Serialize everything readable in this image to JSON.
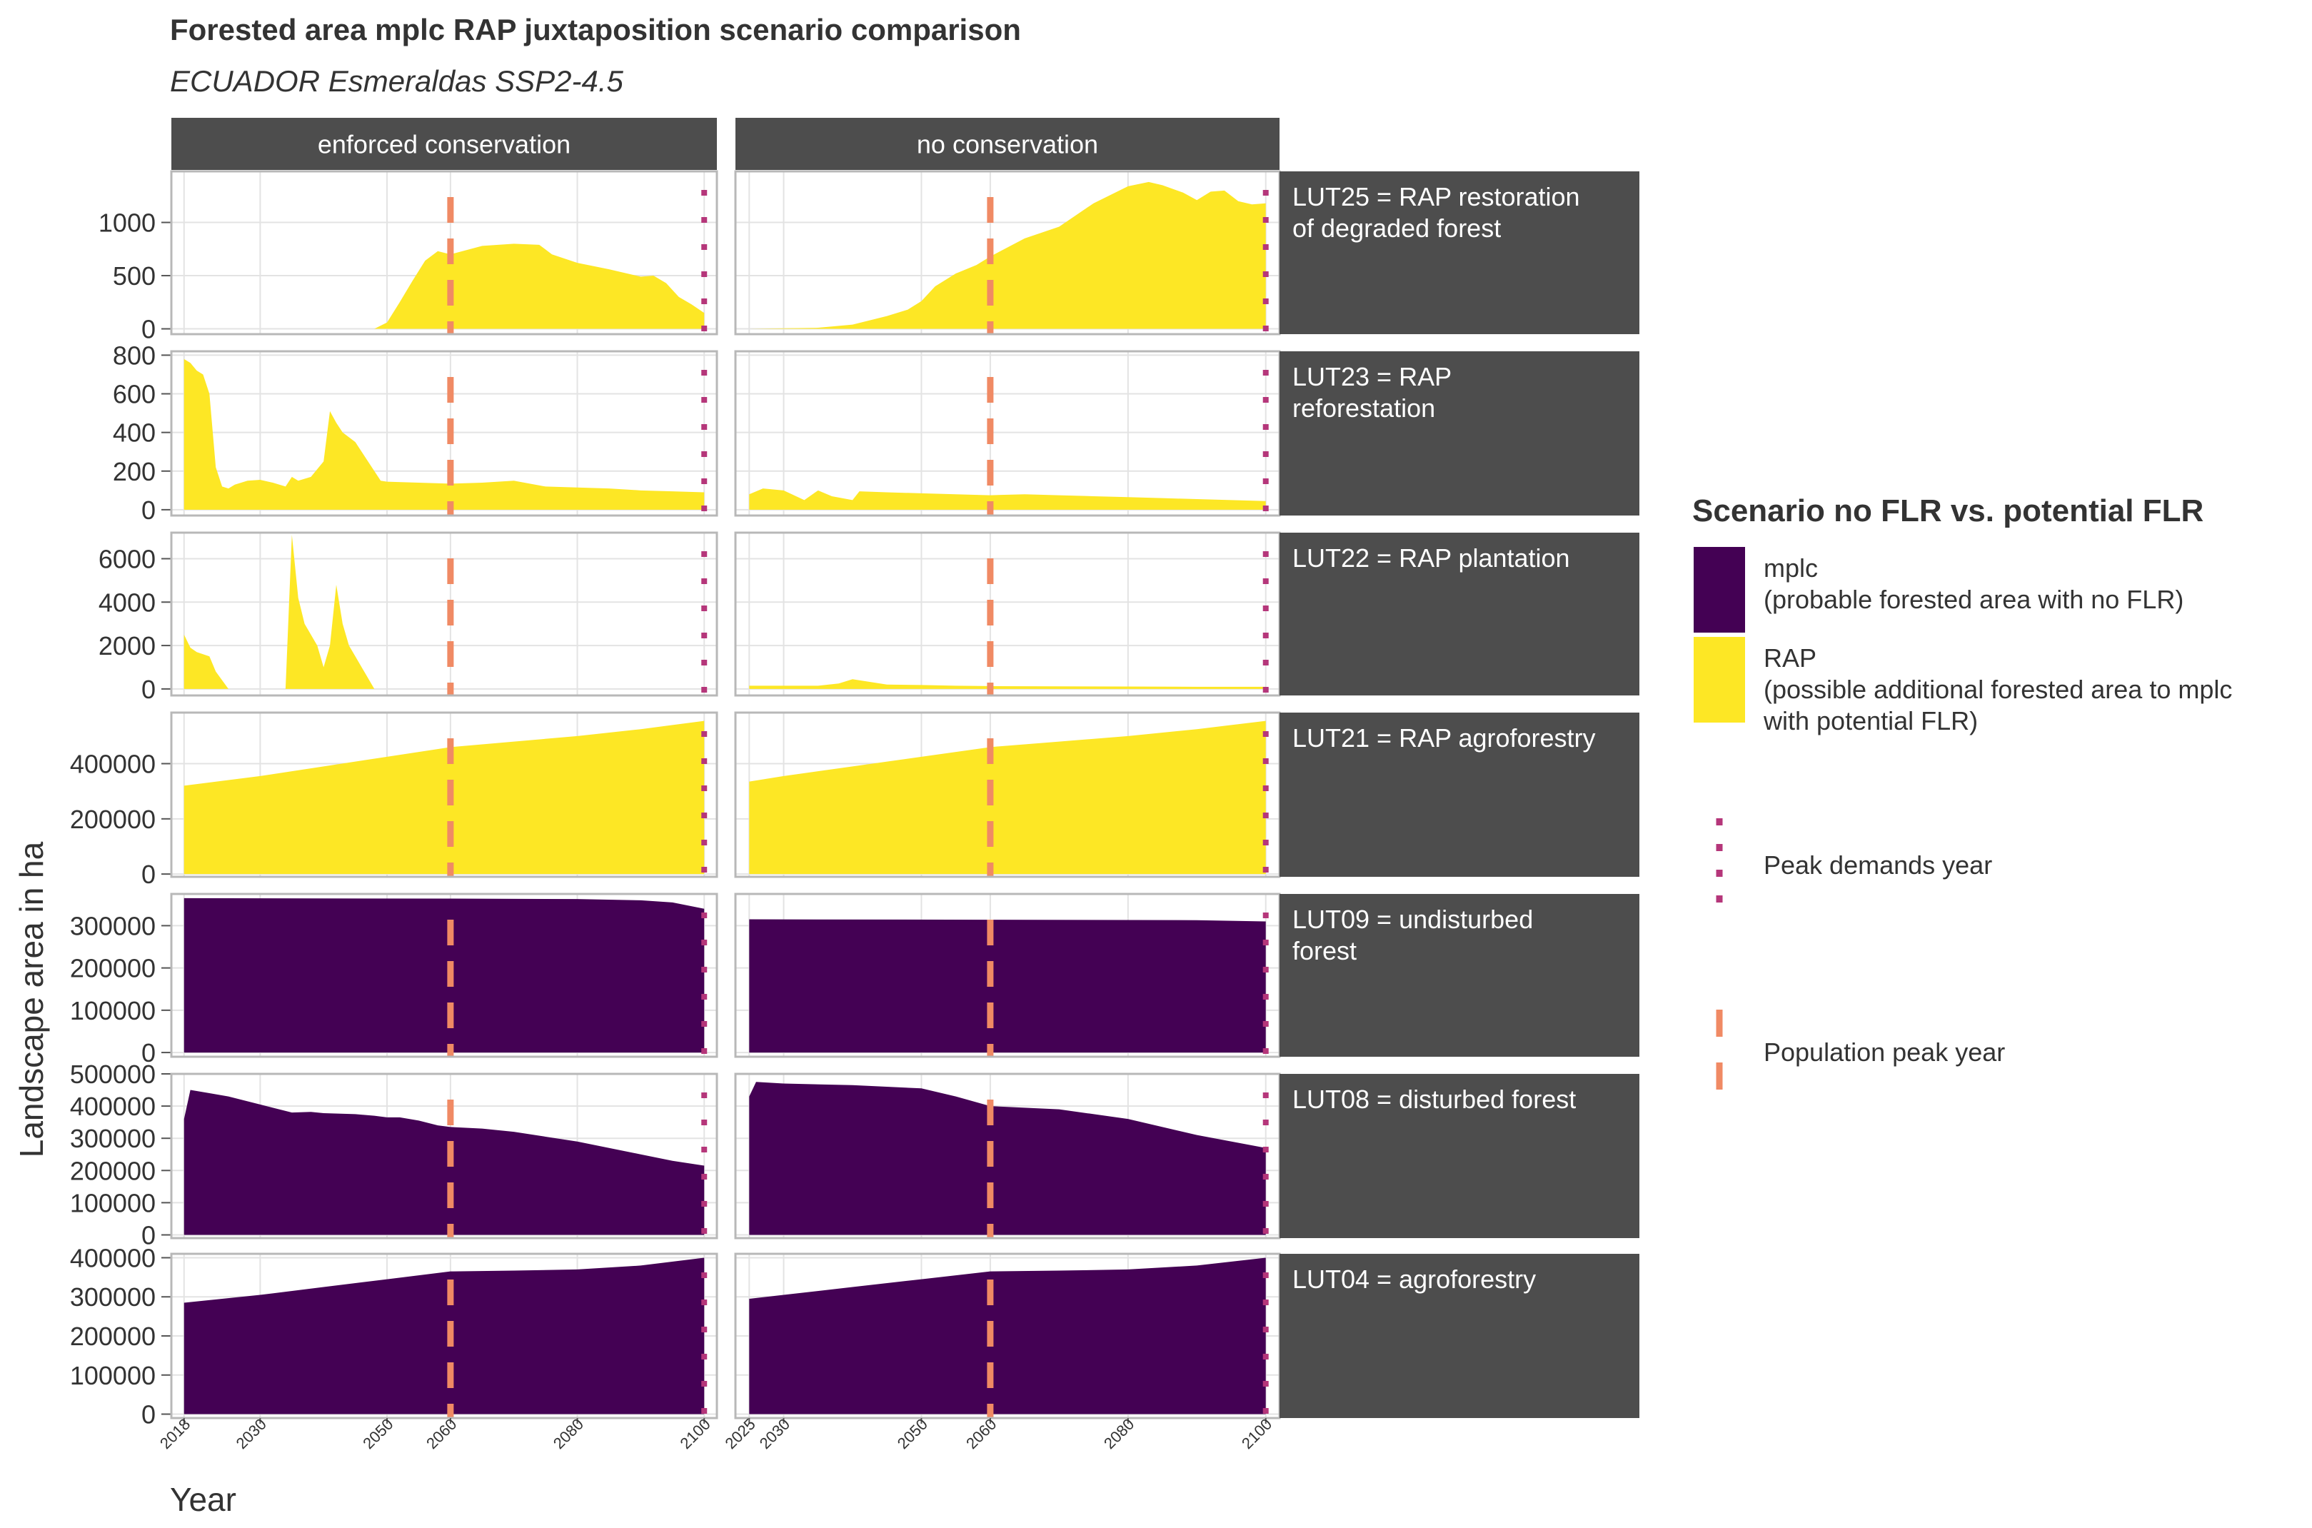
{
  "chart_data": {
    "type": "area",
    "title": "Forested area mplc RAP juxtaposition scenario comparison",
    "subtitle": "ECUADOR Esmeraldas SSP2-4.5",
    "xlabel": "Year",
    "ylabel": "Landscape area in ha",
    "grid": true,
    "legend_position": "right",
    "colors": {
      "mplc": "#440154",
      "RAP": "#fde725",
      "peak_demands": "#b5367a",
      "population_peak": "#f08a64",
      "strip": "#4d4d4d",
      "grid": "#e3e3e3",
      "panel_border": "#b8b8b8"
    },
    "columns": [
      {
        "label": "enforced conservation",
        "xlim": [
          2016,
          2102
        ],
        "xticks": [
          2018,
          2030,
          2050,
          2060,
          2080,
          2100
        ]
      },
      {
        "label": "no conservation",
        "xlim": [
          2023,
          2102
        ],
        "xticks": [
          2025,
          2030,
          2050,
          2060,
          2080,
          2100
        ]
      }
    ],
    "reference_lines": {
      "population_peak_year": 2060,
      "peak_demands_year": 2100
    },
    "legend": {
      "title": "Scenario no FLR vs. potential FLR",
      "items": [
        {
          "key": "mplc",
          "label_lines": [
            "mplc",
            "(probable forested area with no FLR)"
          ]
        },
        {
          "key": "RAP",
          "label_lines": [
            "RAP",
            "(possible additional forested area to mplc",
            "with potential FLR)"
          ]
        }
      ],
      "lines": [
        {
          "key": "peak_demands",
          "label": "Peak demands year"
        },
        {
          "key": "population_peak",
          "label": "Population peak year"
        }
      ]
    },
    "panels": [
      {
        "strip_lines": [
          "LUT25 = RAP restoration",
          "of degraded forest"
        ],
        "fill": "RAP",
        "ylim": [
          -50,
          1480
        ],
        "yticks": [
          0,
          500,
          1000
        ],
        "series": [
          {
            "x": [
              2018,
              2035,
              2048,
              2050,
              2052,
              2054,
              2056,
              2058,
              2060,
              2065,
              2070,
              2074,
              2076,
              2080,
              2085,
              2090,
              2092,
              2094,
              2096,
              2098,
              2100
            ],
            "y": [
              0,
              0,
              0,
              60,
              250,
              450,
              640,
              730,
              700,
              780,
              800,
              790,
              700,
              620,
              560,
              490,
              500,
              430,
              300,
              230,
              150
            ]
          },
          {
            "x": [
              2025,
              2035,
              2040,
              2045,
              2048,
              2050,
              2052,
              2055,
              2058,
              2060,
              2065,
              2070,
              2075,
              2080,
              2083,
              2085,
              2088,
              2090,
              2092,
              2094,
              2096,
              2098,
              2100
            ],
            "y": [
              0,
              10,
              40,
              120,
              180,
              260,
              400,
              520,
              600,
              680,
              850,
              960,
              1180,
              1340,
              1380,
              1350,
              1280,
              1210,
              1290,
              1300,
              1200,
              1170,
              1180
            ]
          }
        ]
      },
      {
        "strip_lines": [
          "LUT23 = RAP",
          "reforestation"
        ],
        "fill": "RAP",
        "ylim": [
          -30,
          820
        ],
        "yticks": [
          0,
          200,
          400,
          600,
          800
        ],
        "series": [
          {
            "x": [
              2018,
              2019,
              2020,
              2021,
              2022,
              2023,
              2024,
              2025,
              2026,
              2028,
              2030,
              2032,
              2034,
              2035,
              2036,
              2038,
              2040,
              2041,
              2042,
              2043,
              2045,
              2047,
              2049,
              2050,
              2055,
              2060,
              2065,
              2070,
              2075,
              2080,
              2085,
              2090,
              2095,
              2100
            ],
            "y": [
              780,
              760,
              720,
              700,
              600,
              220,
              120,
              110,
              130,
              150,
              155,
              140,
              120,
              170,
              150,
              170,
              250,
              510,
              450,
              400,
              350,
              250,
              150,
              145,
              140,
              135,
              140,
              150,
              120,
              115,
              110,
              100,
              95,
              90
            ]
          },
          {
            "x": [
              2025,
              2027,
              2030,
              2033,
              2035,
              2037,
              2040,
              2041,
              2045,
              2050,
              2055,
              2060,
              2065,
              2070,
              2075,
              2080,
              2085,
              2090,
              2095,
              2100
            ],
            "y": [
              80,
              110,
              100,
              50,
              100,
              70,
              50,
              95,
              90,
              85,
              80,
              75,
              80,
              75,
              70,
              65,
              60,
              55,
              50,
              45
            ]
          }
        ]
      },
      {
        "strip_lines": [
          "LUT22 = RAP plantation"
        ],
        "fill": "RAP",
        "ylim": [
          -300,
          7200
        ],
        "yticks": [
          0,
          2000,
          4000,
          6000
        ],
        "series": [
          {
            "x": [
              2018,
              2019,
              2020,
              2022,
              2023,
              2025,
              2030,
              2034,
              2035,
              2036,
              2037,
              2038,
              2039,
              2040,
              2041,
              2042,
              2043,
              2044,
              2045,
              2046,
              2047,
              2048,
              2050,
              2060,
              2080,
              2100
            ],
            "y": [
              2500,
              1900,
              1700,
              1500,
              800,
              0,
              0,
              0,
              7100,
              4200,
              3000,
              2500,
              2000,
              1000,
              2000,
              4800,
              3000,
              2000,
              1500,
              1000,
              500,
              0,
              0,
              0,
              0,
              0
            ]
          },
          {
            "x": [
              2025,
              2030,
              2035,
              2038,
              2040,
              2042,
              2045,
              2050,
              2055,
              2060,
              2070,
              2080,
              2090,
              2100
            ],
            "y": [
              150,
              150,
              150,
              250,
              450,
              350,
              200,
              180,
              150,
              130,
              120,
              110,
              100,
              100
            ]
          }
        ]
      },
      {
        "strip_lines": [
          "LUT21 = RAP agroforestry"
        ],
        "fill": "RAP",
        "ylim": [
          -10000,
          585000
        ],
        "yticks": [
          0,
          200000,
          400000
        ],
        "series": [
          {
            "x": [
              2018,
              2030,
              2040,
              2050,
              2060,
              2070,
              2080,
              2090,
              2100
            ],
            "y": [
              320000,
              355000,
              390000,
              425000,
              460000,
              480000,
              500000,
              525000,
              555000
            ]
          },
          {
            "x": [
              2025,
              2030,
              2040,
              2050,
              2060,
              2070,
              2080,
              2090,
              2100
            ],
            "y": [
              335000,
              355000,
              390000,
              425000,
              460000,
              480000,
              500000,
              525000,
              555000
            ]
          }
        ]
      },
      {
        "strip_lines": [
          "LUT09 = undisturbed",
          "forest"
        ],
        "fill": "mplc",
        "ylim": [
          -10000,
          375000
        ],
        "yticks": [
          0,
          100000,
          200000,
          300000
        ],
        "series": [
          {
            "x": [
              2018,
              2060,
              2080,
              2090,
              2095,
              2100
            ],
            "y": [
              365000,
              364000,
              363000,
              360000,
              355000,
              340000
            ]
          },
          {
            "x": [
              2025,
              2060,
              2090,
              2100
            ],
            "y": [
              315000,
              314000,
              313000,
              310000
            ]
          }
        ]
      },
      {
        "strip_lines": [
          "LUT08 = disturbed forest"
        ],
        "fill": "mplc",
        "ylim": [
          -10000,
          500000
        ],
        "yticks": [
          0,
          100000,
          200000,
          300000,
          400000,
          500000
        ],
        "series": [
          {
            "x": [
              2018,
              2019,
              2022,
              2025,
              2028,
              2030,
              2035,
              2038,
              2040,
              2045,
              2048,
              2050,
              2052,
              2055,
              2058,
              2060,
              2065,
              2070,
              2075,
              2080,
              2085,
              2090,
              2095,
              2100
            ],
            "y": [
              360000,
              450000,
              440000,
              430000,
              415000,
              405000,
              380000,
              382000,
              378000,
              375000,
              370000,
              365000,
              365000,
              355000,
              340000,
              335000,
              330000,
              320000,
              305000,
              290000,
              270000,
              250000,
              230000,
              215000
            ]
          },
          {
            "x": [
              2025,
              2026,
              2030,
              2040,
              2050,
              2055,
              2060,
              2070,
              2080,
              2090,
              2100
            ],
            "y": [
              430000,
              475000,
              470000,
              465000,
              455000,
              430000,
              400000,
              390000,
              360000,
              310000,
              270000
            ]
          }
        ]
      },
      {
        "strip_lines": [
          "LUT04 = agroforestry"
        ],
        "fill": "mplc",
        "ylim": [
          -10000,
          410000
        ],
        "yticks": [
          0,
          100000,
          200000,
          300000,
          400000
        ],
        "series": [
          {
            "x": [
              2018,
              2030,
              2040,
              2050,
              2060,
              2070,
              2080,
              2090,
              2100
            ],
            "y": [
              285000,
              305000,
              325000,
              345000,
              365000,
              367000,
              370000,
              380000,
              400000
            ]
          },
          {
            "x": [
              2025,
              2030,
              2040,
              2050,
              2060,
              2070,
              2080,
              2090,
              2100
            ],
            "y": [
              295000,
              305000,
              325000,
              345000,
              365000,
              367000,
              370000,
              380000,
              400000
            ]
          }
        ]
      }
    ]
  }
}
